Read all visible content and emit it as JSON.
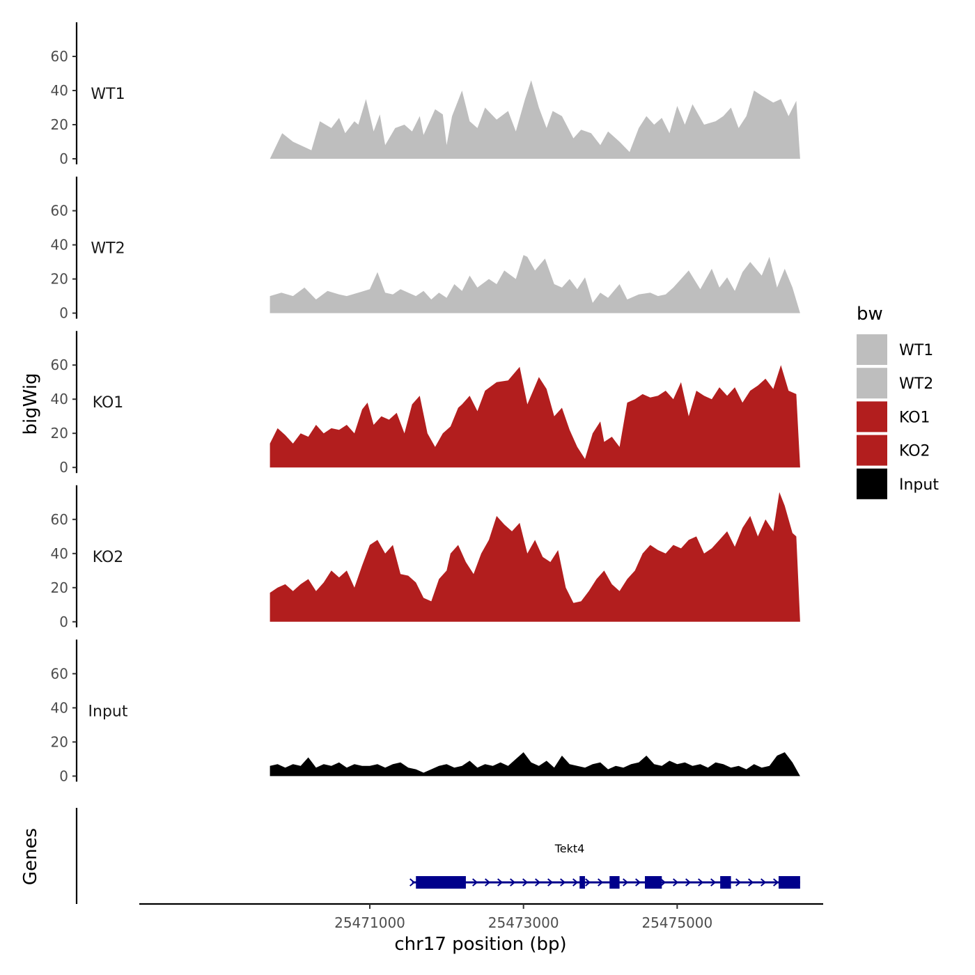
{
  "chart_data": {
    "type": "area",
    "chromosome": "chr17",
    "xlabel": "chr17 position (bp)",
    "ylabel_tracks": "bigWig",
    "ylabel_genes": "Genes",
    "x_range": [
      25468000,
      25476900
    ],
    "x_ticks": [
      25471000,
      25473000,
      25475000
    ],
    "x_tick_labels": [
      "25471000",
      "25473000",
      "25475000"
    ],
    "y_range": [
      0,
      80
    ],
    "y_ticks": [
      0,
      20,
      40,
      60
    ],
    "y_tick_labels": [
      "0",
      "20",
      "40",
      "60"
    ],
    "colors": {
      "WT": "#bebebe",
      "KO": "#b21e1e",
      "Input": "#000000",
      "gene": "#00008b"
    },
    "tracks": [
      {
        "name": "WT1",
        "color": "#bebebe",
        "x": [
          25469700,
          25469860,
          25470000,
          25470240,
          25470350,
          25470500,
          25470600,
          25470680,
          25470800,
          25470850,
          25470950,
          25471050,
          25471130,
          25471200,
          25471330,
          25471450,
          25471550,
          25471650,
          25471700,
          25471850,
          25471950,
          25472000,
          25472070,
          25472200,
          25472300,
          25472400,
          25472500,
          25472650,
          25472800,
          25472900,
          25473020,
          25473100,
          25473200,
          25473300,
          25473380,
          25473500,
          25473650,
          25473750,
          25473880,
          25474000,
          25474100,
          25474250,
          25474380,
          25474500,
          25474600,
          25474700,
          25474800,
          25474900,
          25475000,
          25475100,
          25475200,
          25475350,
          25475500,
          25475600,
          25475700,
          25475800,
          25475900,
          25476000,
          25476100,
          25476250,
          25476350,
          25476450,
          25476550,
          25476600
        ],
        "y": [
          0,
          15,
          10,
          5,
          22,
          18,
          24,
          15,
          22,
          20,
          35,
          16,
          26,
          8,
          18,
          20,
          16,
          25,
          14,
          29,
          26,
          8,
          25,
          40,
          22,
          18,
          30,
          23,
          28,
          16,
          35,
          46,
          30,
          18,
          28,
          25,
          12,
          17,
          15,
          8,
          16,
          10,
          4,
          18,
          25,
          20,
          24,
          15,
          31,
          20,
          32,
          20,
          22,
          25,
          30,
          18,
          25,
          40,
          37,
          33,
          35,
          25,
          34,
          0
        ]
      },
      {
        "name": "WT2",
        "color": "#bebebe",
        "x": [
          25469700,
          25469850,
          25470000,
          25470150,
          25470300,
          25470450,
          25470600,
          25470700,
          25470850,
          25471000,
          25471100,
          25471200,
          25471300,
          25471400,
          25471500,
          25471600,
          25471700,
          25471800,
          25471900,
          25472000,
          25472100,
          25472200,
          25472300,
          25472400,
          25472550,
          25472650,
          25472750,
          25472900,
          25473000,
          25473050,
          25473150,
          25473280,
          25473400,
          25473500,
          25473600,
          25473700,
          25473800,
          25473900,
          25474000,
          25474100,
          25474250,
          25474350,
          25474500,
          25474650,
          25474750,
          25474850,
          25474950,
          25475050,
          25475150,
          25475300,
          25475450,
          25475550,
          25475650,
          25475750,
          25475850,
          25475950,
          25476100,
          25476200,
          25476300,
          25476400,
          25476500,
          25476600
        ],
        "y": [
          10,
          12,
          10,
          15,
          8,
          13,
          11,
          10,
          12,
          14,
          24,
          12,
          11,
          14,
          12,
          10,
          13,
          8,
          12,
          9,
          17,
          13,
          22,
          15,
          20,
          17,
          25,
          20,
          34,
          33,
          25,
          32,
          17,
          15,
          20,
          14,
          21,
          6,
          12,
          9,
          17,
          8,
          11,
          12,
          10,
          11,
          15,
          20,
          25,
          14,
          26,
          15,
          21,
          13,
          24,
          30,
          22,
          33,
          15,
          26,
          15,
          0
        ]
      },
      {
        "name": "KO1",
        "color": "#b21e1e",
        "x": [
          25469700,
          25469800,
          25469900,
          25470000,
          25470100,
          25470200,
          25470300,
          25470400,
          25470500,
          25470600,
          25470700,
          25470800,
          25470900,
          25470970,
          25471050,
          25471150,
          25471250,
          25471350,
          25471450,
          25471550,
          25471650,
          25471750,
          25471850,
          25471950,
          25472050,
          25472150,
          25472200,
          25472300,
          25472400,
          25472500,
          25472650,
          25472800,
          25472950,
          25473050,
          25473200,
          25473300,
          25473400,
          25473500,
          25473600,
          25473700,
          25473800,
          25473900,
          25474000,
          25474050,
          25474150,
          25474250,
          25474350,
          25474450,
          25474550,
          25474650,
          25474750,
          25474850,
          25474950,
          25475050,
          25475150,
          25475250,
          25475350,
          25475450,
          25475550,
          25475650,
          25475750,
          25475850,
          25475950,
          25476050,
          25476150,
          25476250,
          25476350,
          25476450,
          25476550,
          25476600
        ],
        "y": [
          14,
          23,
          19,
          14,
          20,
          18,
          25,
          20,
          23,
          22,
          25,
          20,
          34,
          38,
          25,
          30,
          28,
          32,
          20,
          37,
          42,
          20,
          12,
          20,
          24,
          35,
          37,
          42,
          33,
          45,
          50,
          51,
          59,
          37,
          53,
          46,
          30,
          35,
          22,
          12,
          5,
          20,
          27,
          15,
          18,
          12,
          38,
          40,
          43,
          41,
          42,
          45,
          40,
          50,
          30,
          45,
          42,
          40,
          47,
          42,
          47,
          38,
          45,
          48,
          52,
          46,
          60,
          45,
          43,
          0
        ]
      },
      {
        "name": "KO2",
        "color": "#b21e1e",
        "x": [
          25469700,
          25469800,
          25469900,
          25470000,
          25470100,
          25470200,
          25470300,
          25470400,
          25470500,
          25470600,
          25470700,
          25470800,
          25470900,
          25471000,
          25471100,
          25471200,
          25471300,
          25471400,
          25471500,
          25471600,
          25471700,
          25471800,
          25471900,
          25472000,
          25472050,
          25472150,
          25472250,
          25472350,
          25472450,
          25472550,
          25472650,
          25472750,
          25472850,
          25472950,
          25473050,
          25473150,
          25473250,
          25473350,
          25473450,
          25473550,
          25473650,
          25473750,
          25473850,
          25473950,
          25474050,
          25474150,
          25474250,
          25474350,
          25474450,
          25474550,
          25474650,
          25474750,
          25474850,
          25474950,
          25475050,
          25475150,
          25475250,
          25475350,
          25475450,
          25475550,
          25475650,
          25475750,
          25475850,
          25475950,
          25476050,
          25476150,
          25476250,
          25476330,
          25476400,
          25476500,
          25476550,
          25476600
        ],
        "y": [
          17,
          20,
          22,
          18,
          22,
          25,
          18,
          23,
          30,
          26,
          30,
          20,
          33,
          45,
          48,
          40,
          45,
          28,
          27,
          23,
          14,
          12,
          25,
          30,
          40,
          45,
          35,
          28,
          40,
          48,
          62,
          57,
          53,
          58,
          40,
          48,
          38,
          35,
          42,
          20,
          11,
          12,
          18,
          25,
          30,
          22,
          18,
          25,
          30,
          40,
          45,
          42,
          40,
          45,
          43,
          48,
          50,
          40,
          43,
          48,
          53,
          44,
          55,
          62,
          50,
          60,
          53,
          76,
          68,
          52,
          50,
          0
        ]
      },
      {
        "name": "Input",
        "color": "#000000",
        "x": [
          25469700,
          25469800,
          25469900,
          25470000,
          25470100,
          25470200,
          25470300,
          25470400,
          25470500,
          25470600,
          25470700,
          25470800,
          25470900,
          25471000,
          25471100,
          25471200,
          25471300,
          25471400,
          25471500,
          25471600,
          25471700,
          25471800,
          25471900,
          25472000,
          25472100,
          25472200,
          25472300,
          25472400,
          25472500,
          25472600,
          25472700,
          25472800,
          25472900,
          25473000,
          25473100,
          25473200,
          25473300,
          25473400,
          25473500,
          25473600,
          25473700,
          25473800,
          25473900,
          25474000,
          25474100,
          25474200,
          25474300,
          25474400,
          25474500,
          25474600,
          25474700,
          25474800,
          25474900,
          25475000,
          25475100,
          25475200,
          25475300,
          25475400,
          25475500,
          25475600,
          25475700,
          25475800,
          25475900,
          25476000,
          25476100,
          25476200,
          25476300,
          25476400,
          25476500,
          25476600
        ],
        "y": [
          6,
          7,
          5,
          7,
          6,
          11,
          5,
          7,
          6,
          8,
          5,
          7,
          6,
          6,
          7,
          5,
          7,
          8,
          5,
          4,
          2,
          4,
          6,
          7,
          5,
          6,
          9,
          5,
          7,
          6,
          8,
          6,
          10,
          14,
          8,
          6,
          9,
          5,
          12,
          7,
          6,
          5,
          7,
          8,
          4,
          6,
          5,
          7,
          8,
          12,
          7,
          6,
          9,
          7,
          8,
          6,
          7,
          5,
          8,
          7,
          5,
          6,
          4,
          7,
          5,
          6,
          12,
          14,
          8,
          0
        ]
      }
    ],
    "legend": {
      "title": "bw",
      "entries": [
        {
          "label": "WT1",
          "color": "#bebebe"
        },
        {
          "label": "WT2",
          "color": "#bebebe"
        },
        {
          "label": "KO1",
          "color": "#b21e1e"
        },
        {
          "label": "KO2",
          "color": "#b21e1e"
        },
        {
          "label": "Input",
          "color": "#000000"
        }
      ]
    },
    "gene": {
      "name": "Tekt4",
      "strand": "+",
      "start": 25471550,
      "end": 25476600,
      "exons": [
        [
          25471600,
          25472250
        ],
        [
          25473730,
          25473800
        ],
        [
          25474120,
          25474250
        ],
        [
          25474580,
          25474800
        ],
        [
          25475560,
          25475700
        ],
        [
          25476320,
          25476600
        ]
      ]
    }
  }
}
